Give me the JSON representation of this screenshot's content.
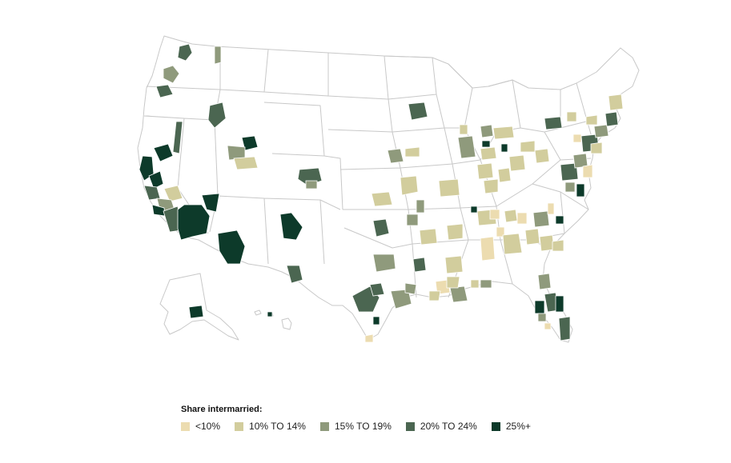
{
  "legend": {
    "title": "Share intermarried:",
    "items": [
      {
        "label": "<10%",
        "color": "#ecdcb0"
      },
      {
        "label": "10% TO 14%",
        "color": "#d2cd9d"
      },
      {
        "label": "15% TO 19%",
        "color": "#8f9a7c"
      },
      {
        "label": "20% TO 24%",
        "color": "#4b6651"
      },
      {
        "label": "25%+",
        "color": "#0d3a2a"
      }
    ]
  },
  "map": {
    "colors": {
      "state_stroke": "#c8c8c8",
      "land": "#ffffff",
      "metro_stroke": "#ffffff"
    }
  }
}
